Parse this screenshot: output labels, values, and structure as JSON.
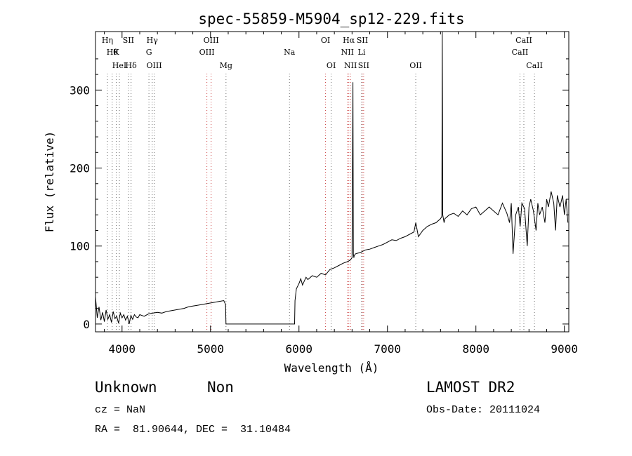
{
  "chart_data": {
    "type": "line",
    "title": "spec-55859-M5904_sp12-229.fits",
    "xlabel": "Wavelength (Å)",
    "ylabel": "Flux (relative)",
    "xlim": [
      3700,
      9050
    ],
    "ylim": [
      -10,
      375
    ],
    "xticks": [
      4000,
      5000,
      6000,
      7000,
      8000,
      9000
    ],
    "yticks": [
      0,
      100,
      200,
      300
    ],
    "grid": false,
    "series": [
      {
        "x": [
          3700,
          3720,
          3740,
          3760,
          3780,
          3800,
          3820,
          3840,
          3860,
          3880,
          3900,
          3920,
          3940,
          3960,
          3980,
          4000,
          4020,
          4040,
          4060,
          4080,
          4100,
          4120,
          4140,
          4160,
          4180,
          4200,
          4250,
          4300,
          4350,
          4400,
          4450,
          4500,
          4550,
          4600,
          4650,
          4700,
          4750,
          4800,
          4850,
          4900,
          4950,
          5000,
          5050,
          5100,
          5150,
          5170,
          5175,
          5200,
          5400,
          5600,
          5800,
          5950,
          5955,
          5970,
          6000,
          6020,
          6040,
          6060,
          6080,
          6100,
          6150,
          6200,
          6250,
          6300,
          6350,
          6400,
          6450,
          6500,
          6550,
          6580,
          6600,
          6610,
          6615,
          6620,
          6625,
          6640,
          6700,
          6750,
          6800,
          6850,
          6900,
          6950,
          7000,
          7050,
          7100,
          7150,
          7200,
          7250,
          7300,
          7320,
          7350,
          7400,
          7450,
          7500,
          7550,
          7600,
          7615,
          7620,
          7625,
          7640,
          7650,
          7700,
          7750,
          7800,
          7850,
          7900,
          7950,
          8000,
          8050,
          8100,
          8150,
          8200,
          8250,
          8300,
          8350,
          8380,
          8400,
          8420,
          8450,
          8480,
          8500,
          8520,
          8550,
          8580,
          8600,
          8620,
          8650,
          8680,
          8700,
          8720,
          8750,
          8780,
          8800,
          8820,
          8850,
          8880,
          8900,
          8920,
          8950,
          8980,
          9000,
          9020,
          9040
        ],
        "y": [
          35,
          8,
          22,
          5,
          15,
          3,
          18,
          6,
          12,
          2,
          16,
          7,
          10,
          1,
          14,
          8,
          12,
          5,
          10,
          0,
          11,
          6,
          12,
          9,
          8,
          12,
          10,
          13,
          14,
          15,
          14,
          16,
          17,
          18,
          19,
          20,
          22,
          23,
          24,
          25,
          26,
          27,
          28,
          29,
          30,
          25,
          0,
          0,
          0,
          0,
          0,
          0,
          30,
          45,
          52,
          58,
          50,
          55,
          60,
          57,
          62,
          60,
          65,
          63,
          70,
          72,
          75,
          78,
          80,
          82,
          85,
          310,
          90,
          85,
          88,
          90,
          92,
          95,
          96,
          98,
          100,
          102,
          105,
          108,
          107,
          110,
          112,
          115,
          118,
          130,
          112,
          120,
          125,
          128,
          130,
          135,
          138,
          375,
          140,
          130,
          135,
          140,
          142,
          138,
          145,
          140,
          148,
          150,
          140,
          145,
          150,
          145,
          140,
          155,
          142,
          130,
          155,
          90,
          140,
          150,
          125,
          155,
          148,
          100,
          150,
          160,
          145,
          120,
          155,
          140,
          150,
          130,
          160,
          150,
          170,
          155,
          120,
          165,
          150,
          165,
          140,
          160,
          130
        ]
      }
    ],
    "line_groups": [
      {
        "color": "#6e6e6e",
        "lines": [
          {
            "x": 3835,
            "label": "Hη",
            "row": 0
          },
          {
            "x": 3889,
            "label": "Hθ",
            "row": 1
          },
          {
            "x": 3934,
            "label": "K",
            "row": 1
          },
          {
            "x": 3970,
            "label": "HeI",
            "row": 2
          },
          {
            "x": 4072,
            "label": "SII",
            "row": 0
          },
          {
            "x": 4102,
            "label": "Hδ",
            "row": 2
          },
          {
            "x": 4304,
            "label": "G",
            "row": 1
          },
          {
            "x": 4341,
            "label": "Hγ",
            "row": 0
          },
          {
            "x": 4363,
            "label": "OIII",
            "row": 2
          },
          {
            "x": 5175,
            "label": "Mg",
            "row": 2
          },
          {
            "x": 5893,
            "label": "Na",
            "row": 1
          },
          {
            "x": 6364,
            "label": "OI",
            "row": 2
          },
          {
            "x": 6708,
            "label": "Li",
            "row": 1
          },
          {
            "x": 7320,
            "label": "OII",
            "row": 2
          },
          {
            "x": 8498,
            "label": "CaII",
            "row": 1
          },
          {
            "x": 8542,
            "label": "CaII",
            "row": 0
          },
          {
            "x": 8662,
            "label": "CaII",
            "row": 2
          }
        ]
      },
      {
        "color": "#cc4444",
        "lines": [
          {
            "x": 4959,
            "label": "OIII",
            "row": 1
          },
          {
            "x": 5007,
            "label": "OIII",
            "row": 0
          },
          {
            "x": 6300,
            "label": "OI",
            "row": 0
          },
          {
            "x": 6548,
            "label": "NII",
            "row": 1
          },
          {
            "x": 6563,
            "label": "Hα",
            "row": 0
          },
          {
            "x": 6583,
            "label": "NII",
            "row": 2
          },
          {
            "x": 6716,
            "label": "SII",
            "row": 0
          },
          {
            "x": 6731,
            "label": "SII",
            "row": 2
          }
        ]
      }
    ]
  },
  "info": {
    "class_text": "Unknown",
    "subclass_text": "Non",
    "survey_text": "LAMOST DR2",
    "cz_text": "cz = NaN",
    "obsdate_text": "Obs-Date: 20111024",
    "radec_text": "RA =  81.90644, DEC =  31.10484"
  }
}
